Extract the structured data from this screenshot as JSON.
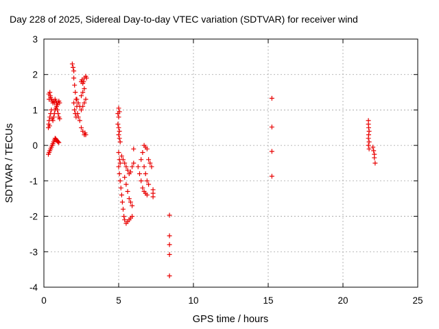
{
  "chart_data": {
    "type": "scatter",
    "title": "Day 228 of 2025, Sidereal Day-to-day VTEC variation (SDTVAR) for receiver wind",
    "xlabel": "GPS time / hours",
    "ylabel": "SDTVAR / TECUs",
    "xlim": [
      0,
      25
    ],
    "ylim": [
      -4,
      3
    ],
    "xticks": [
      0,
      5,
      10,
      15,
      20,
      25
    ],
    "yticks": [
      -4,
      -3,
      -2,
      -1,
      0,
      1,
      2,
      3
    ],
    "grid": true,
    "marker": "+",
    "marker_color": "#e80000",
    "series": [
      {
        "name": "SDTVAR",
        "points": [
          [
            0.3,
            0.5
          ],
          [
            0.32,
            0.6
          ],
          [
            0.35,
            0.7
          ],
          [
            0.38,
            0.55
          ],
          [
            0.33,
            1.45
          ],
          [
            0.35,
            1.3
          ],
          [
            0.4,
            1.5
          ],
          [
            0.42,
            1.4
          ],
          [
            0.45,
            1.35
          ],
          [
            0.5,
            1.3
          ],
          [
            0.55,
            1.25
          ],
          [
            0.6,
            1.2
          ],
          [
            0.65,
            1.25
          ],
          [
            0.7,
            1.2
          ],
          [
            0.75,
            1.3
          ],
          [
            0.8,
            1.25
          ],
          [
            0.85,
            1.2
          ],
          [
            0.9,
            1.15
          ],
          [
            0.95,
            1.2
          ],
          [
            1.0,
            1.25
          ],
          [
            1.05,
            1.2
          ],
          [
            0.4,
            0.8
          ],
          [
            0.45,
            0.9
          ],
          [
            0.5,
            1.0
          ],
          [
            0.55,
            0.75
          ],
          [
            0.6,
            0.7
          ],
          [
            0.65,
            0.8
          ],
          [
            0.7,
            0.9
          ],
          [
            0.75,
            1.0
          ],
          [
            0.8,
            1.05
          ],
          [
            0.85,
            1.1
          ],
          [
            0.9,
            1.0
          ],
          [
            0.95,
            0.9
          ],
          [
            1.0,
            0.8
          ],
          [
            1.05,
            0.75
          ],
          [
            0.3,
            -0.25
          ],
          [
            0.35,
            -0.2
          ],
          [
            0.4,
            -0.15
          ],
          [
            0.45,
            -0.1
          ],
          [
            0.5,
            -0.05
          ],
          [
            0.55,
            0.0
          ],
          [
            0.6,
            0.05
          ],
          [
            0.65,
            0.1
          ],
          [
            0.7,
            0.15
          ],
          [
            0.75,
            0.2
          ],
          [
            0.8,
            0.18
          ],
          [
            0.85,
            0.15
          ],
          [
            0.9,
            0.12
          ],
          [
            0.95,
            0.1
          ],
          [
            1.0,
            0.08
          ],
          [
            1.9,
            2.3
          ],
          [
            1.95,
            2.2
          ],
          [
            2.0,
            2.1
          ],
          [
            2.0,
            1.9
          ],
          [
            2.05,
            1.7
          ],
          [
            2.1,
            1.5
          ],
          [
            2.15,
            1.3
          ],
          [
            2.2,
            1.1
          ],
          [
            2.25,
            0.9
          ],
          [
            2.3,
            0.8
          ],
          [
            2.0,
            1.2
          ],
          [
            2.05,
            1.0
          ],
          [
            2.1,
            0.9
          ],
          [
            2.15,
            0.8
          ],
          [
            2.2,
            1.3
          ],
          [
            2.3,
            1.2
          ],
          [
            2.4,
            1.1
          ],
          [
            2.5,
            1.0
          ],
          [
            2.6,
            1.1
          ],
          [
            2.7,
            1.2
          ],
          [
            2.8,
            1.3
          ],
          [
            2.5,
            1.4
          ],
          [
            2.6,
            1.5
          ],
          [
            2.7,
            1.6
          ],
          [
            2.5,
            1.8
          ],
          [
            2.55,
            1.85
          ],
          [
            2.6,
            1.75
          ],
          [
            2.65,
            1.8
          ],
          [
            2.7,
            1.9
          ],
          [
            2.8,
            1.95
          ],
          [
            2.85,
            1.9
          ],
          [
            2.4,
            0.7
          ],
          [
            2.5,
            0.5
          ],
          [
            2.6,
            0.4
          ],
          [
            2.7,
            0.3
          ],
          [
            2.75,
            0.35
          ],
          [
            2.8,
            0.3
          ],
          [
            4.95,
            0.9
          ],
          [
            5.0,
            1.05
          ],
          [
            5.05,
            0.95
          ],
          [
            5.0,
            0.8
          ],
          [
            4.95,
            0.6
          ],
          [
            5.0,
            0.5
          ],
          [
            5.05,
            0.4
          ],
          [
            5.0,
            0.3
          ],
          [
            5.05,
            0.2
          ],
          [
            5.1,
            0.1
          ],
          [
            5.0,
            -0.2
          ],
          [
            5.05,
            -0.4
          ],
          [
            5.1,
            -0.5
          ],
          [
            5.0,
            -0.6
          ],
          [
            5.05,
            -0.8
          ],
          [
            5.1,
            -1.0
          ],
          [
            5.15,
            -1.2
          ],
          [
            5.2,
            -1.4
          ],
          [
            5.25,
            -1.6
          ],
          [
            5.3,
            -1.8
          ],
          [
            5.35,
            -2.0
          ],
          [
            5.4,
            -2.1
          ],
          [
            5.5,
            -2.2
          ],
          [
            5.6,
            -2.15
          ],
          [
            5.7,
            -2.1
          ],
          [
            5.8,
            -2.05
          ],
          [
            5.9,
            -2.0
          ],
          [
            5.2,
            -0.3
          ],
          [
            5.3,
            -0.4
          ],
          [
            5.4,
            -0.5
          ],
          [
            5.5,
            -0.6
          ],
          [
            5.6,
            -0.7
          ],
          [
            5.7,
            -0.8
          ],
          [
            5.8,
            -0.75
          ],
          [
            5.9,
            -0.6
          ],
          [
            6.0,
            -0.5
          ],
          [
            5.4,
            -0.9
          ],
          [
            5.5,
            -1.1
          ],
          [
            5.6,
            -1.3
          ],
          [
            5.7,
            -1.5
          ],
          [
            5.8,
            -1.6
          ],
          [
            5.9,
            -1.7
          ],
          [
            6.0,
            -0.1
          ],
          [
            6.3,
            -0.6
          ],
          [
            6.4,
            -0.8
          ],
          [
            6.5,
            -1.0
          ],
          [
            6.6,
            -1.2
          ],
          [
            6.7,
            -1.3
          ],
          [
            6.8,
            -1.35
          ],
          [
            6.9,
            -1.4
          ],
          [
            6.5,
            -0.4
          ],
          [
            6.6,
            -0.2
          ],
          [
            6.7,
            0.0
          ],
          [
            6.8,
            -0.05
          ],
          [
            6.9,
            -0.1
          ],
          [
            6.7,
            -0.6
          ],
          [
            6.8,
            -0.8
          ],
          [
            6.9,
            -1.0
          ],
          [
            7.0,
            -1.1
          ],
          [
            7.0,
            -0.4
          ],
          [
            7.1,
            -0.5
          ],
          [
            7.2,
            -0.6
          ],
          [
            7.3,
            -1.25
          ],
          [
            7.3,
            -1.35
          ],
          [
            7.3,
            -1.45
          ],
          [
            8.4,
            -1.97
          ],
          [
            8.4,
            -2.55
          ],
          [
            8.4,
            -2.8
          ],
          [
            8.4,
            -3.08
          ],
          [
            8.4,
            -3.68
          ],
          [
            15.25,
            1.33
          ],
          [
            15.25,
            0.52
          ],
          [
            15.25,
            -0.17
          ],
          [
            15.25,
            -0.87
          ],
          [
            21.7,
            0.7
          ],
          [
            21.7,
            0.6
          ],
          [
            21.72,
            0.5
          ],
          [
            21.75,
            0.4
          ],
          [
            21.72,
            0.3
          ],
          [
            21.7,
            0.2
          ],
          [
            21.75,
            0.1
          ],
          [
            21.7,
            0.0
          ],
          [
            21.75,
            -0.1
          ],
          [
            22.0,
            -0.05
          ],
          [
            22.05,
            -0.15
          ],
          [
            22.1,
            -0.25
          ],
          [
            22.1,
            -0.35
          ],
          [
            22.15,
            -0.5
          ]
        ]
      }
    ]
  }
}
